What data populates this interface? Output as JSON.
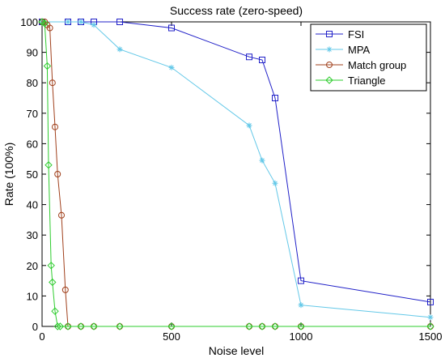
{
  "chart_data": {
    "type": "line",
    "title": "Success rate (zero-speed)",
    "xlabel": "Noise level",
    "ylabel": "Rate (100%)",
    "xlim": [
      0,
      1500
    ],
    "ylim": [
      0,
      100
    ],
    "xticks": [
      0,
      500,
      1000,
      1500
    ],
    "yticks": [
      0,
      10,
      20,
      30,
      40,
      50,
      60,
      70,
      80,
      90,
      100
    ],
    "grid": false,
    "legend_position": "top-right",
    "series": [
      {
        "name": "FSI",
        "color": "#2020c8",
        "marker": "square",
        "x": [
          0,
          100,
          150,
          200,
          300,
          500,
          800,
          850,
          900,
          1000,
          1500
        ],
        "y": [
          100,
          100,
          100,
          100,
          100,
          98,
          88.5,
          87.5,
          75,
          15,
          8
        ]
      },
      {
        "name": "MPA",
        "color": "#63c8e8",
        "marker": "star",
        "x": [
          0,
          100,
          150,
          200,
          300,
          500,
          800,
          850,
          900,
          1000,
          1500
        ],
        "y": [
          100,
          100,
          100,
          99,
          91,
          85,
          66,
          54.5,
          47,
          7,
          3
        ]
      },
      {
        "name": "Match group",
        "color": "#a0401c",
        "marker": "circle",
        "x": [
          0,
          10,
          20,
          30,
          40,
          50,
          60,
          75,
          90,
          100,
          150,
          200,
          300,
          500,
          800,
          850,
          900,
          1000,
          1500
        ],
        "y": [
          100,
          100,
          99,
          98,
          80,
          65.5,
          50,
          36.5,
          12,
          0,
          0,
          0,
          0,
          0,
          0,
          0,
          0,
          0,
          0
        ]
      },
      {
        "name": "Triangle",
        "color": "#2ecc2e",
        "marker": "diamond",
        "x": [
          0,
          10,
          20,
          25,
          35,
          40,
          50,
          60,
          70,
          100,
          150,
          200,
          300,
          500,
          800,
          850,
          900,
          1000,
          1500
        ],
        "y": [
          100,
          99.5,
          85.5,
          53,
          20,
          14.5,
          5,
          0,
          0,
          0,
          0,
          0,
          0,
          0,
          0,
          0,
          0,
          0,
          0
        ]
      }
    ]
  }
}
